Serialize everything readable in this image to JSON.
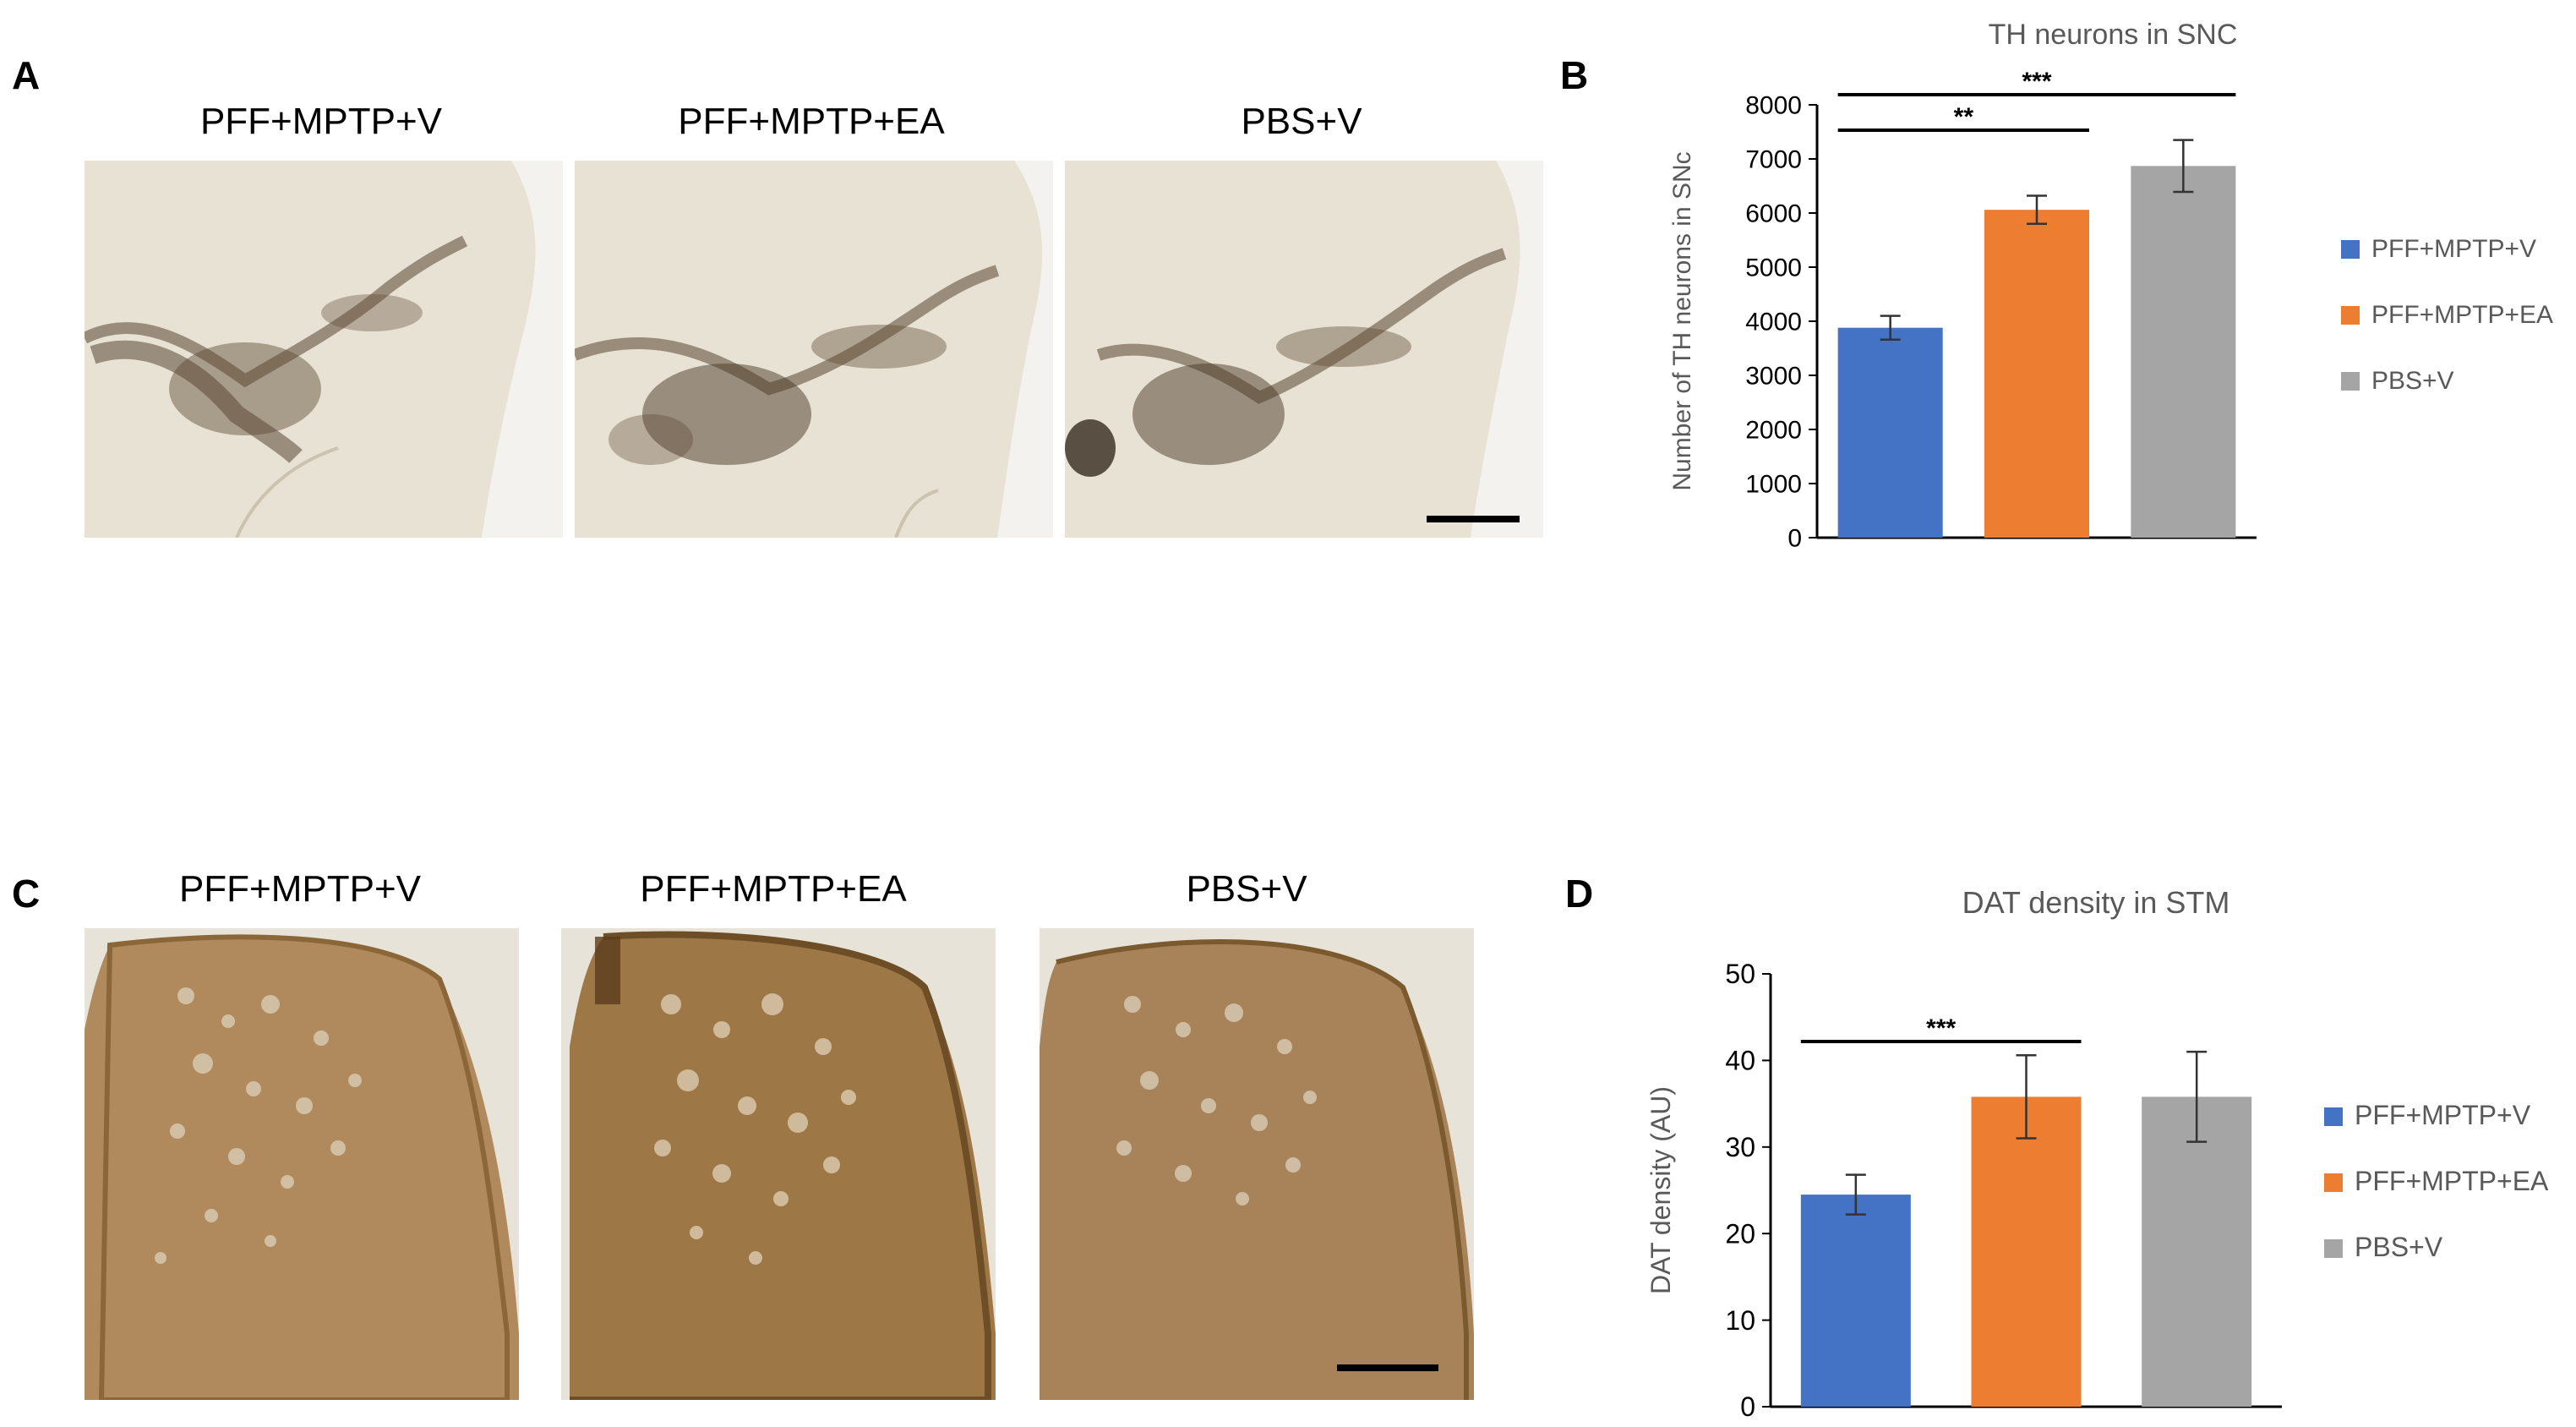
{
  "panels": {
    "A": "A",
    "B": "B",
    "C": "C",
    "D": "D"
  },
  "image_labels_top": [
    "PFF+MPTP+V",
    "PFF+MPTP+EA",
    "PBS+V"
  ],
  "image_labels_bottom": [
    "PFF+MPTP+V",
    "PFF+MPTP+EA",
    "PBS+V"
  ],
  "colors": {
    "tissue_light": "#e7e1d3",
    "tissue_stain": "#5a4630",
    "striatum": "#a57e52",
    "series": [
      "#4472c4",
      "#ed7d31",
      "#a5a5a5"
    ]
  },
  "chart_data": [
    {
      "type": "bar",
      "title": "TH neurons in SNC",
      "xlabel": "",
      "ylabel": "Number of TH neurons in SNc",
      "categories": [
        "PFF+MPTP+V",
        "PFF+MPTP+EA",
        "PBS+V"
      ],
      "values": [
        3880,
        6060,
        6870
      ],
      "errors": [
        220,
        260,
        480
      ],
      "ylim": [
        0,
        8000
      ],
      "yticks": [
        0,
        1000,
        2000,
        3000,
        4000,
        5000,
        6000,
        7000,
        8000
      ],
      "legend": [
        "PFF+MPTP+V",
        "PFF+MPTP+EA",
        "PBS+V"
      ],
      "legend_position": "right",
      "significance": [
        {
          "from": 0,
          "to": 1,
          "label": "**"
        },
        {
          "from": 0,
          "to": 2,
          "label": "***"
        }
      ],
      "grid": false
    },
    {
      "type": "bar",
      "title": "DAT density in STM",
      "xlabel": "",
      "ylabel": "DAT density (AU)",
      "categories": [
        "PFF+MPTP+V",
        "PFF+MPTP+EA",
        "PBS+V"
      ],
      "values": [
        24.5,
        35.8,
        35.8
      ],
      "errors": [
        2.3,
        4.8,
        5.2
      ],
      "ylim": [
        0,
        50
      ],
      "yticks": [
        0,
        10,
        20,
        30,
        40,
        50
      ],
      "legend": [
        "PFF+MPTP+V",
        "PFF+MPTP+EA",
        "PBS+V"
      ],
      "legend_position": "right",
      "significance": [
        {
          "from": 0,
          "to": 1,
          "label": "***"
        }
      ],
      "grid": false
    }
  ]
}
